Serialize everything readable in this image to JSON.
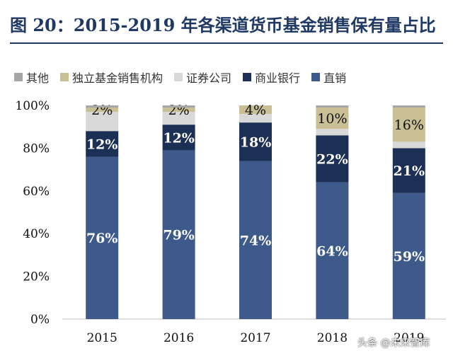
{
  "title": "图 20：2015-2019 年各渠道货币基金销售保有量占比",
  "watermark": "头条 @未来智库",
  "chart_data": {
    "type": "bar",
    "stacked": true,
    "categories": [
      "2015",
      "2016",
      "2017",
      "2018",
      "2019"
    ],
    "ylim": [
      0,
      100
    ],
    "yticks": [
      "0%",
      "20%",
      "40%",
      "60%",
      "80%",
      "100%"
    ],
    "legend_position": "top",
    "series": [
      {
        "name": "直销",
        "color": "#3d5a8a",
        "values": [
          76,
          79,
          74,
          64,
          59
        ],
        "labels": [
          "76%",
          "79%",
          "74%",
          "64%",
          "59%"
        ]
      },
      {
        "name": "商业银行",
        "color": "#1c2f55",
        "values": [
          12,
          12,
          18,
          22,
          21
        ],
        "labels": [
          "12%",
          "12%",
          "18%",
          "22%",
          "21%"
        ]
      },
      {
        "name": "证券公司",
        "color": "#d9d9d9",
        "values": [
          9,
          6,
          4,
          3,
          3
        ],
        "labels": [
          "",
          "",
          "",
          "",
          ""
        ]
      },
      {
        "name": "独立基金销售机构",
        "color": "#c9bf95",
        "values": [
          2,
          2,
          4,
          10,
          16
        ],
        "labels": [
          "2%",
          "2%",
          "4%",
          "10%",
          "16%"
        ]
      },
      {
        "name": "其他",
        "color": "#a6a6a6",
        "values": [
          1,
          1,
          0,
          1,
          1
        ],
        "labels": [
          "",
          "",
          "",
          "",
          ""
        ]
      }
    ],
    "legend_order": [
      "其他",
      "独立基金销售机构",
      "证券公司",
      "商业银行",
      "直销"
    ]
  }
}
